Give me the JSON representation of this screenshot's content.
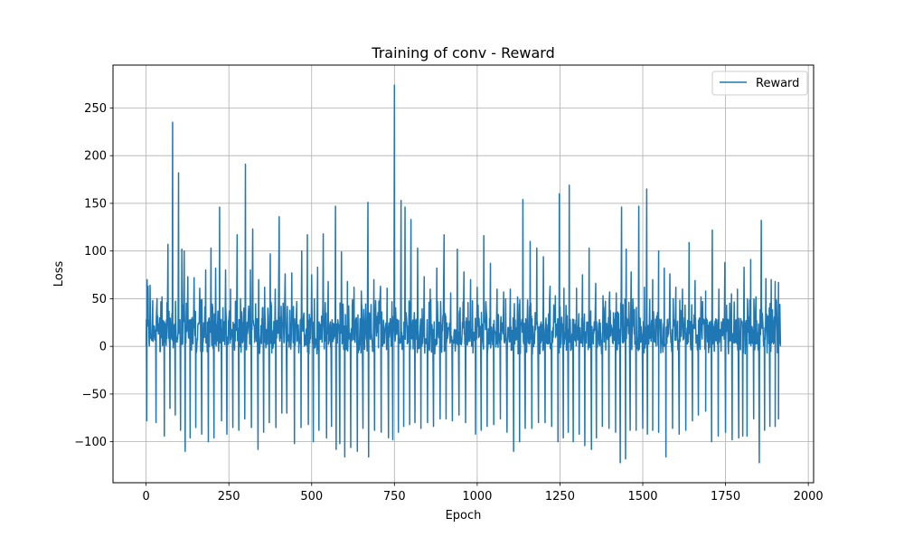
{
  "chart_data": {
    "type": "line",
    "title": "Training of conv - Reward",
    "xlabel": "Epoch",
    "ylabel": "Loss",
    "xlim": [
      -100,
      2016
    ],
    "ylim": [
      -143,
      295
    ],
    "xticks": [
      0,
      250,
      500,
      750,
      1000,
      1250,
      1500,
      1750,
      2000
    ],
    "xtick_labels": [
      "0",
      "250",
      "500",
      "750",
      "1000",
      "1250",
      "1500",
      "1750",
      "2000"
    ],
    "yticks": [
      -100,
      -50,
      0,
      50,
      100,
      150,
      200,
      250
    ],
    "ytick_labels": [
      "−100",
      "−50",
      "0",
      "50",
      "100",
      "150",
      "200",
      "250"
    ],
    "grid": true,
    "legend": {
      "position": "top-right",
      "entries": [
        "Reward"
      ]
    },
    "series": [
      {
        "name": "Reward",
        "color": "#1f77b4",
        "x_start": 0,
        "x_end": 1916,
        "peaks": [
          {
            "x": 3,
            "y": 70
          },
          {
            "x": 6,
            "y": 63
          },
          {
            "x": 12,
            "y": 64
          },
          {
            "x": 20,
            "y": 48
          },
          {
            "x": 33,
            "y": 50
          },
          {
            "x": 48,
            "y": 52
          },
          {
            "x": 66,
            "y": 107
          },
          {
            "x": 80,
            "y": 235
          },
          {
            "x": 98,
            "y": 182
          },
          {
            "x": 108,
            "y": 102
          },
          {
            "x": 115,
            "y": 100
          },
          {
            "x": 126,
            "y": 73
          },
          {
            "x": 145,
            "y": 72
          },
          {
            "x": 162,
            "y": 61
          },
          {
            "x": 180,
            "y": 80
          },
          {
            "x": 196,
            "y": 103
          },
          {
            "x": 210,
            "y": 82
          },
          {
            "x": 222,
            "y": 146
          },
          {
            "x": 240,
            "y": 80
          },
          {
            "x": 255,
            "y": 60
          },
          {
            "x": 275,
            "y": 117
          },
          {
            "x": 285,
            "y": 50
          },
          {
            "x": 300,
            "y": 191
          },
          {
            "x": 315,
            "y": 80
          },
          {
            "x": 322,
            "y": 123
          },
          {
            "x": 340,
            "y": 70
          },
          {
            "x": 358,
            "y": 62
          },
          {
            "x": 375,
            "y": 97
          },
          {
            "x": 390,
            "y": 60
          },
          {
            "x": 402,
            "y": 136
          },
          {
            "x": 420,
            "y": 76
          },
          {
            "x": 440,
            "y": 77
          },
          {
            "x": 455,
            "y": 47
          },
          {
            "x": 470,
            "y": 100
          },
          {
            "x": 487,
            "y": 117
          },
          {
            "x": 500,
            "y": 75
          },
          {
            "x": 518,
            "y": 83
          },
          {
            "x": 535,
            "y": 118
          },
          {
            "x": 550,
            "y": 68
          },
          {
            "x": 572,
            "y": 147
          },
          {
            "x": 590,
            "y": 99
          },
          {
            "x": 608,
            "y": 68
          },
          {
            "x": 628,
            "y": 62
          },
          {
            "x": 650,
            "y": 58
          },
          {
            "x": 670,
            "y": 151
          },
          {
            "x": 688,
            "y": 70
          },
          {
            "x": 708,
            "y": 63
          },
          {
            "x": 728,
            "y": 61
          },
          {
            "x": 750,
            "y": 274
          },
          {
            "x": 770,
            "y": 153
          },
          {
            "x": 782,
            "y": 146
          },
          {
            "x": 800,
            "y": 133
          },
          {
            "x": 820,
            "y": 103
          },
          {
            "x": 840,
            "y": 73
          },
          {
            "x": 858,
            "y": 60
          },
          {
            "x": 878,
            "y": 82
          },
          {
            "x": 900,
            "y": 117
          },
          {
            "x": 920,
            "y": 56
          },
          {
            "x": 940,
            "y": 102
          },
          {
            "x": 960,
            "y": 78
          },
          {
            "x": 980,
            "y": 70
          },
          {
            "x": 1000,
            "y": 62
          },
          {
            "x": 1020,
            "y": 116
          },
          {
            "x": 1040,
            "y": 87
          },
          {
            "x": 1060,
            "y": 60
          },
          {
            "x": 1080,
            "y": 57
          },
          {
            "x": 1100,
            "y": 60
          },
          {
            "x": 1122,
            "y": 52
          },
          {
            "x": 1138,
            "y": 154
          },
          {
            "x": 1160,
            "y": 110
          },
          {
            "x": 1180,
            "y": 103
          },
          {
            "x": 1200,
            "y": 94
          },
          {
            "x": 1220,
            "y": 63
          },
          {
            "x": 1236,
            "y": 53
          },
          {
            "x": 1248,
            "y": 160
          },
          {
            "x": 1262,
            "y": 61
          },
          {
            "x": 1278,
            "y": 169
          },
          {
            "x": 1300,
            "y": 61
          },
          {
            "x": 1318,
            "y": 75
          },
          {
            "x": 1338,
            "y": 103
          },
          {
            "x": 1358,
            "y": 66
          },
          {
            "x": 1380,
            "y": 53
          },
          {
            "x": 1400,
            "y": 57
          },
          {
            "x": 1420,
            "y": 56
          },
          {
            "x": 1436,
            "y": 146
          },
          {
            "x": 1450,
            "y": 102
          },
          {
            "x": 1465,
            "y": 78
          },
          {
            "x": 1488,
            "y": 147
          },
          {
            "x": 1505,
            "y": 62
          },
          {
            "x": 1512,
            "y": 165
          },
          {
            "x": 1530,
            "y": 70
          },
          {
            "x": 1548,
            "y": 100
          },
          {
            "x": 1565,
            "y": 82
          },
          {
            "x": 1582,
            "y": 76
          },
          {
            "x": 1600,
            "y": 62
          },
          {
            "x": 1620,
            "y": 60
          },
          {
            "x": 1640,
            "y": 109
          },
          {
            "x": 1658,
            "y": 69
          },
          {
            "x": 1676,
            "y": 52
          },
          {
            "x": 1690,
            "y": 58
          },
          {
            "x": 1710,
            "y": 122
          },
          {
            "x": 1730,
            "y": 60
          },
          {
            "x": 1748,
            "y": 88
          },
          {
            "x": 1768,
            "y": 55
          },
          {
            "x": 1786,
            "y": 60
          },
          {
            "x": 1806,
            "y": 83
          },
          {
            "x": 1826,
            "y": 91
          },
          {
            "x": 1842,
            "y": 52
          },
          {
            "x": 1858,
            "y": 132
          },
          {
            "x": 1872,
            "y": 71
          },
          {
            "x": 1888,
            "y": 70
          },
          {
            "x": 1900,
            "y": 68
          },
          {
            "x": 1910,
            "y": 67
          },
          {
            "x": 1914,
            "y": 44
          }
        ],
        "troughs": [
          {
            "x": 2,
            "y": -78
          },
          {
            "x": 30,
            "y": -80
          },
          {
            "x": 55,
            "y": -94
          },
          {
            "x": 72,
            "y": -65
          },
          {
            "x": 88,
            "y": -72
          },
          {
            "x": 104,
            "y": -88
          },
          {
            "x": 118,
            "y": -110
          },
          {
            "x": 133,
            "y": -96
          },
          {
            "x": 150,
            "y": -85
          },
          {
            "x": 168,
            "y": -92
          },
          {
            "x": 188,
            "y": -100
          },
          {
            "x": 205,
            "y": -96
          },
          {
            "x": 228,
            "y": -78
          },
          {
            "x": 244,
            "y": -92
          },
          {
            "x": 262,
            "y": -85
          },
          {
            "x": 280,
            "y": -88
          },
          {
            "x": 298,
            "y": -76
          },
          {
            "x": 318,
            "y": -85
          },
          {
            "x": 338,
            "y": -108
          },
          {
            "x": 355,
            "y": -90
          },
          {
            "x": 372,
            "y": -80
          },
          {
            "x": 392,
            "y": -85
          },
          {
            "x": 410,
            "y": -70
          },
          {
            "x": 425,
            "y": -70
          },
          {
            "x": 448,
            "y": -102
          },
          {
            "x": 468,
            "y": -85
          },
          {
            "x": 490,
            "y": -82
          },
          {
            "x": 505,
            "y": -100
          },
          {
            "x": 522,
            "y": -88
          },
          {
            "x": 545,
            "y": -96
          },
          {
            "x": 560,
            "y": -84
          },
          {
            "x": 574,
            "y": -108
          },
          {
            "x": 585,
            "y": -102
          },
          {
            "x": 600,
            "y": -116
          },
          {
            "x": 618,
            "y": -106
          },
          {
            "x": 638,
            "y": -110
          },
          {
            "x": 655,
            "y": -86
          },
          {
            "x": 672,
            "y": -116
          },
          {
            "x": 690,
            "y": -88
          },
          {
            "x": 710,
            "y": -90
          },
          {
            "x": 732,
            "y": -96
          },
          {
            "x": 745,
            "y": -98
          },
          {
            "x": 762,
            "y": -90
          },
          {
            "x": 778,
            "y": -84
          },
          {
            "x": 796,
            "y": -82
          },
          {
            "x": 812,
            "y": -80
          },
          {
            "x": 830,
            "y": -86
          },
          {
            "x": 850,
            "y": -80
          },
          {
            "x": 868,
            "y": -84
          },
          {
            "x": 888,
            "y": -76
          },
          {
            "x": 906,
            "y": -76
          },
          {
            "x": 925,
            "y": -78
          },
          {
            "x": 945,
            "y": -72
          },
          {
            "x": 965,
            "y": -80
          },
          {
            "x": 995,
            "y": -92
          },
          {
            "x": 1012,
            "y": -88
          },
          {
            "x": 1030,
            "y": -84
          },
          {
            "x": 1050,
            "y": -82
          },
          {
            "x": 1070,
            "y": -76
          },
          {
            "x": 1090,
            "y": -90
          },
          {
            "x": 1110,
            "y": -110
          },
          {
            "x": 1128,
            "y": -100
          },
          {
            "x": 1145,
            "y": -86
          },
          {
            "x": 1165,
            "y": -86
          },
          {
            "x": 1185,
            "y": -80
          },
          {
            "x": 1205,
            "y": -80
          },
          {
            "x": 1225,
            "y": -84
          },
          {
            "x": 1244,
            "y": -100
          },
          {
            "x": 1260,
            "y": -96
          },
          {
            "x": 1275,
            "y": -90
          },
          {
            "x": 1290,
            "y": -100
          },
          {
            "x": 1308,
            "y": -92
          },
          {
            "x": 1325,
            "y": -104
          },
          {
            "x": 1345,
            "y": -108
          },
          {
            "x": 1360,
            "y": -96
          },
          {
            "x": 1378,
            "y": -84
          },
          {
            "x": 1398,
            "y": -86
          },
          {
            "x": 1418,
            "y": -90
          },
          {
            "x": 1432,
            "y": -122
          },
          {
            "x": 1448,
            "y": -118
          },
          {
            "x": 1462,
            "y": -88
          },
          {
            "x": 1480,
            "y": -88
          },
          {
            "x": 1500,
            "y": -86
          },
          {
            "x": 1514,
            "y": -92
          },
          {
            "x": 1530,
            "y": -88
          },
          {
            "x": 1548,
            "y": -90
          },
          {
            "x": 1570,
            "y": -116
          },
          {
            "x": 1590,
            "y": -86
          },
          {
            "x": 1610,
            "y": -92
          },
          {
            "x": 1630,
            "y": -88
          },
          {
            "x": 1650,
            "y": -78
          },
          {
            "x": 1668,
            "y": -72
          },
          {
            "x": 1690,
            "y": -68
          },
          {
            "x": 1708,
            "y": -100
          },
          {
            "x": 1728,
            "y": -94
          },
          {
            "x": 1750,
            "y": -90
          },
          {
            "x": 1770,
            "y": -98
          },
          {
            "x": 1790,
            "y": -96
          },
          {
            "x": 1802,
            "y": -94
          },
          {
            "x": 1815,
            "y": -94
          },
          {
            "x": 1835,
            "y": -76
          },
          {
            "x": 1852,
            "y": -122
          },
          {
            "x": 1868,
            "y": -88
          },
          {
            "x": 1884,
            "y": -84
          },
          {
            "x": 1900,
            "y": -84
          },
          {
            "x": 1910,
            "y": -76
          }
        ],
        "x_end_value": 0
      }
    ]
  }
}
